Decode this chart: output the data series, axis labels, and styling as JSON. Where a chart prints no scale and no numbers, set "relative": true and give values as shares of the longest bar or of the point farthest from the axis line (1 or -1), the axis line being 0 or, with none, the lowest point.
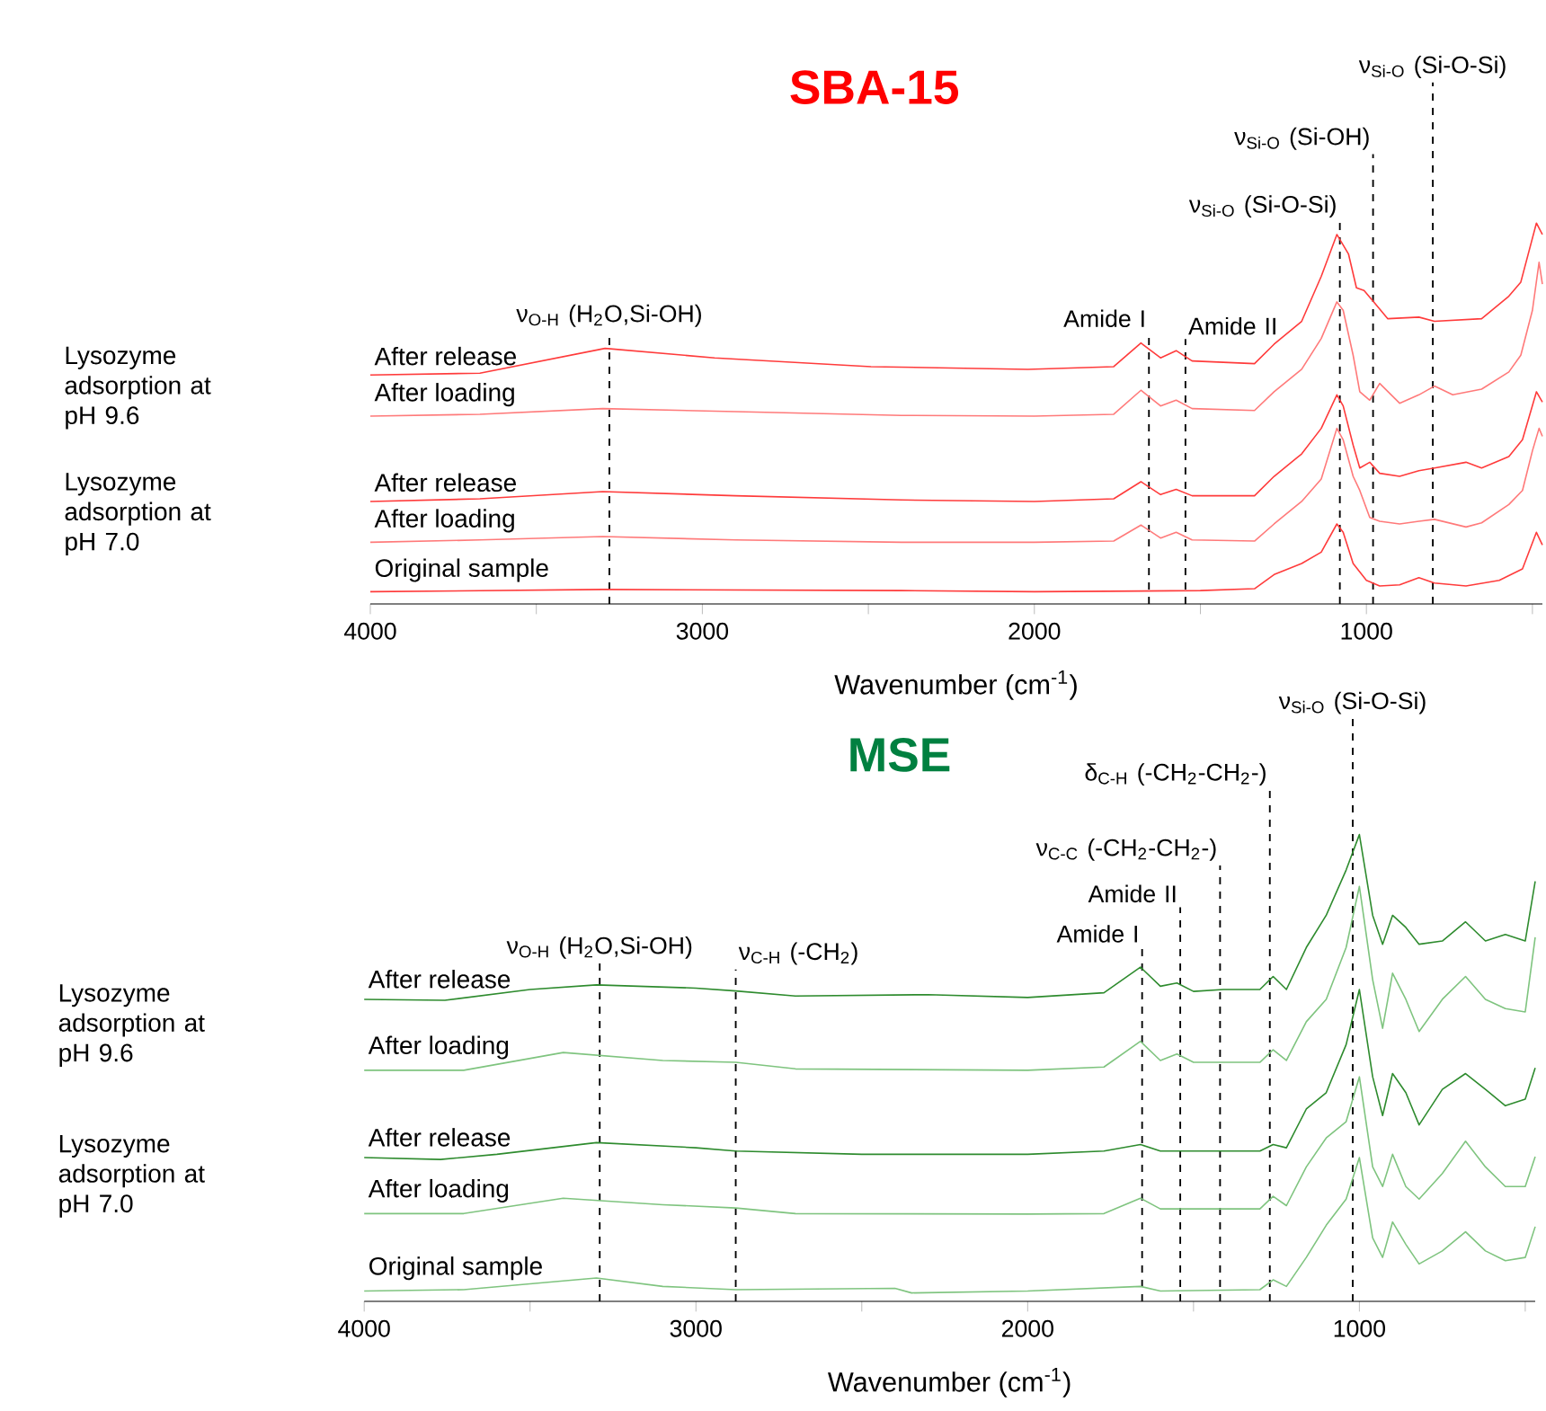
{
  "chart_data": [
    {
      "type": "line",
      "title": "SBA-15",
      "xlabel": "Wavenumber (cm$^{-1}$)",
      "relative": true,
      "xlim": [
        4000,
        470
      ],
      "xticks": [
        4000,
        {
          "value": 3500,
          "label": null
        },
        3000,
        {
          "value": 2500,
          "label": null
        },
        2000,
        {
          "value": 1500,
          "label": null
        },
        1000,
        {
          "value": 500,
          "label": null
        }
      ],
      "series": [
        {
          "name": "After release",
          "color": "#ff3b3b",
          "x": [
            4000,
            3670,
            3293,
            2963,
            2492,
            2020,
            1761,
            1679,
            1620,
            1573,
            1525,
            1337,
            1278,
            1195,
            1136,
            1089,
            1054,
            1030,
            1007,
            936,
            842,
            795,
            653,
            571,
            535,
            488,
            470
          ],
          "values": [
            0.601,
            0.606,
            0.671,
            0.646,
            0.623,
            0.616,
            0.623,
            0.685,
            0.646,
            0.665,
            0.638,
            0.631,
            0.682,
            0.742,
            0.86,
            0.97,
            0.919,
            0.83,
            0.823,
            0.749,
            0.753,
            0.742,
            0.749,
            0.808,
            0.845,
            1.0,
            0.97
          ]
        },
        {
          "name": "After loading",
          "color": "#ff7a7a",
          "x": [
            4000,
            3670,
            3300,
            2900,
            2400,
            2000,
            1761,
            1679,
            1620,
            1573,
            1525,
            1337,
            1278,
            1195,
            1136,
            1089,
            1070,
            1040,
            1020,
            990,
            960,
            900,
            842,
            795,
            740,
            653,
            571,
            535,
            500,
            480,
            470
          ],
          "values": [
            0.493,
            0.498,
            0.513,
            0.505,
            0.495,
            0.493,
            0.498,
            0.561,
            0.52,
            0.535,
            0.513,
            0.508,
            0.557,
            0.616,
            0.697,
            0.793,
            0.771,
            0.653,
            0.557,
            0.535,
            0.579,
            0.527,
            0.549,
            0.572,
            0.549,
            0.564,
            0.609,
            0.653,
            0.771,
            0.897,
            0.84
          ]
        },
        {
          "name": "After release",
          "color": "#ff3b3b",
          "x": [
            4000,
            3670,
            3300,
            2900,
            2400,
            2000,
            1761,
            1679,
            1620,
            1573,
            1525,
            1337,
            1278,
            1195,
            1136,
            1089,
            1070,
            1040,
            1020,
            990,
            960,
            900,
            842,
            795,
            700,
            653,
            571,
            530,
            488,
            470
          ],
          "values": [
            0.269,
            0.276,
            0.295,
            0.284,
            0.273,
            0.269,
            0.276,
            0.321,
            0.287,
            0.301,
            0.284,
            0.284,
            0.335,
            0.394,
            0.461,
            0.549,
            0.52,
            0.417,
            0.357,
            0.372,
            0.343,
            0.335,
            0.35,
            0.357,
            0.372,
            0.357,
            0.387,
            0.431,
            0.557,
            0.53
          ]
        },
        {
          "name": "After loading",
          "color": "#ff7a7a",
          "x": [
            4000,
            3670,
            3300,
            2900,
            2400,
            2000,
            1761,
            1679,
            1620,
            1573,
            1525,
            1337,
            1278,
            1195,
            1136,
            1089,
            1070,
            1040,
            1020,
            990,
            960,
            900,
            842,
            795,
            700,
            653,
            571,
            530,
            500,
            480,
            470
          ],
          "values": [
            0.162,
            0.168,
            0.177,
            0.168,
            0.162,
            0.162,
            0.165,
            0.207,
            0.173,
            0.188,
            0.168,
            0.165,
            0.21,
            0.269,
            0.328,
            0.461,
            0.431,
            0.335,
            0.298,
            0.227,
            0.217,
            0.21,
            0.217,
            0.222,
            0.202,
            0.213,
            0.261,
            0.298,
            0.402,
            0.461,
            0.44
          ]
        },
        {
          "name": "Original sample",
          "color": "#ff3b3b",
          "x": [
            4000,
            3300,
            2400,
            2000,
            1500,
            1337,
            1278,
            1195,
            1136,
            1089,
            1070,
            1040,
            1000,
            960,
            900,
            842,
            795,
            700,
            600,
            530,
            488,
            470
          ],
          "values": [
            0.032,
            0.038,
            0.035,
            0.032,
            0.035,
            0.04,
            0.077,
            0.106,
            0.136,
            0.21,
            0.188,
            0.106,
            0.062,
            0.047,
            0.05,
            0.069,
            0.055,
            0.047,
            0.062,
            0.092,
            0.188,
            0.155
          ]
        }
      ],
      "annotations": [
        "Lysozyme adsorption at pH 9.6",
        "Lysozyme adsorption at pH 7.0"
      ],
      "ref_lines": [
        {
          "axis": "x",
          "value": 3280,
          "line_style": "dashed",
          "label": "ν$_{O-H}$ (H$_{2}$O,Si-OH)"
        },
        {
          "axis": "x",
          "value": 1655,
          "line_style": "dashed",
          "label": "Amide I"
        },
        {
          "axis": "x",
          "value": 1545,
          "line_style": "dashed",
          "label": "Amide II"
        },
        {
          "axis": "x",
          "value": 1080,
          "line_style": "dashed",
          "label": "ν$_{Si-O}$ (Si-O-Si)"
        },
        {
          "axis": "x",
          "value": 980,
          "line_style": "dashed",
          "label": "ν$_{Si-O}$ (Si-OH)"
        },
        {
          "axis": "x",
          "value": 800,
          "line_style": "dashed",
          "label": "ν$_{Si-O}$ (Si-O-Si)"
        }
      ]
    },
    {
      "type": "line",
      "title": "MSE",
      "xlabel": "Wavenumber (cm$^{-1}$)",
      "relative": true,
      "xlim": [
        4000,
        470
      ],
      "xticks": [
        4000,
        {
          "value": 3500,
          "label": null
        },
        3000,
        {
          "value": 2500,
          "label": null
        },
        2000,
        {
          "value": 1500,
          "label": null
        },
        1000,
        {
          "value": 500,
          "label": null
        }
      ],
      "series": [
        {
          "name": "After release",
          "color": "#2e8b2e",
          "x": [
            4000,
            3757,
            3500,
            3300,
            3000,
            2880,
            2700,
            2300,
            2000,
            1770,
            1660,
            1600,
            1550,
            1500,
            1410,
            1300,
            1260,
            1220,
            1160,
            1100,
            1040,
            1000,
            960,
            930,
            900,
            860,
            820,
            750,
            680,
            620,
            560,
            500,
            470
          ],
          "values": [
            0.647,
            0.645,
            0.668,
            0.678,
            0.671,
            0.665,
            0.654,
            0.657,
            0.651,
            0.661,
            0.716,
            0.675,
            0.682,
            0.664,
            0.668,
            0.668,
            0.696,
            0.668,
            0.758,
            0.827,
            0.924,
            1.0,
            0.827,
            0.765,
            0.827,
            0.801,
            0.765,
            0.772,
            0.813,
            0.772,
            0.786,
            0.772,
            0.9
          ]
        },
        {
          "name": "After loading",
          "color": "#7fc47f",
          "x": [
            4000,
            3700,
            3400,
            3100,
            2880,
            2700,
            2000,
            1770,
            1660,
            1600,
            1550,
            1500,
            1300,
            1260,
            1220,
            1160,
            1100,
            1040,
            1000,
            960,
            930,
            900,
            860,
            820,
            750,
            680,
            620,
            560,
            500,
            470
          ],
          "values": [
            0.495,
            0.495,
            0.533,
            0.516,
            0.512,
            0.498,
            0.495,
            0.502,
            0.557,
            0.516,
            0.53,
            0.512,
            0.512,
            0.539,
            0.516,
            0.599,
            0.647,
            0.758,
            0.889,
            0.689,
            0.585,
            0.703,
            0.647,
            0.578,
            0.647,
            0.696,
            0.647,
            0.627,
            0.62,
            0.78
          ]
        },
        {
          "name": "After release",
          "color": "#2e8b2e",
          "x": [
            4000,
            3770,
            3600,
            3300,
            3000,
            2880,
            2500,
            2000,
            1770,
            1660,
            1600,
            1300,
            1260,
            1220,
            1160,
            1100,
            1040,
            1000,
            960,
            930,
            900,
            860,
            820,
            750,
            680,
            620,
            560,
            500,
            470
          ],
          "values": [
            0.308,
            0.304,
            0.315,
            0.34,
            0.329,
            0.322,
            0.315,
            0.315,
            0.322,
            0.336,
            0.322,
            0.322,
            0.336,
            0.329,
            0.412,
            0.447,
            0.55,
            0.668,
            0.481,
            0.398,
            0.488,
            0.447,
            0.378,
            0.454,
            0.488,
            0.454,
            0.419,
            0.433,
            0.5
          ]
        },
        {
          "name": "After loading",
          "color": "#7fc47f",
          "x": [
            4000,
            3700,
            3400,
            3100,
            2880,
            2700,
            2000,
            1770,
            1660,
            1600,
            1300,
            1260,
            1220,
            1160,
            1100,
            1040,
            1000,
            960,
            930,
            900,
            860,
            820,
            750,
            680,
            620,
            560,
            500,
            470
          ],
          "values": [
            0.188,
            0.188,
            0.221,
            0.207,
            0.2,
            0.188,
            0.187,
            0.188,
            0.221,
            0.198,
            0.198,
            0.225,
            0.205,
            0.288,
            0.35,
            0.385,
            0.481,
            0.288,
            0.246,
            0.315,
            0.246,
            0.219,
            0.274,
            0.343,
            0.288,
            0.246,
            0.246,
            0.31
          ]
        },
        {
          "name": "Original sample",
          "color": "#7fc47f",
          "x": [
            4000,
            3700,
            3300,
            3100,
            2880,
            2400,
            2350,
            2000,
            1660,
            1600,
            1300,
            1260,
            1220,
            1160,
            1100,
            1040,
            1000,
            960,
            930,
            900,
            860,
            820,
            750,
            680,
            620,
            560,
            500,
            470
          ],
          "values": [
            0.022,
            0.025,
            0.05,
            0.032,
            0.025,
            0.028,
            0.018,
            0.022,
            0.032,
            0.022,
            0.025,
            0.046,
            0.032,
            0.094,
            0.163,
            0.219,
            0.308,
            0.136,
            0.094,
            0.17,
            0.122,
            0.08,
            0.108,
            0.149,
            0.108,
            0.087,
            0.094,
            0.16
          ]
        }
      ],
      "annotations": [
        "Lysozyme adsorption at pH 9.6",
        "Lysozyme adsorption at pH 7.0"
      ],
      "ref_lines": [
        {
          "axis": "x",
          "value": 3290,
          "line_style": "dashed",
          "label": "ν$_{O-H}$ (H$_{2}$O,Si-OH)"
        },
        {
          "axis": "x",
          "value": 2880,
          "line_style": "dashed",
          "label": "ν$_{C-H}$ (-CH$_{2}$)"
        },
        {
          "axis": "x",
          "value": 1655,
          "line_style": "dashed",
          "label": "Amide I"
        },
        {
          "axis": "x",
          "value": 1540,
          "line_style": "dashed",
          "label": "Amide II"
        },
        {
          "axis": "x",
          "value": 1420,
          "line_style": "dashed",
          "label": "ν$_{C-C}$ (-CH$_{2}$-CH$_{2}$-)"
        },
        {
          "axis": "x",
          "value": 1270,
          "line_style": "dashed",
          "label": "δ$_{C-H}$ (-CH$_{2}$-CH$_{2}$-)"
        },
        {
          "axis": "x",
          "value": 1020,
          "line_style": "dashed",
          "label": "ν$_{Si-O}$ (Si-O-Si)"
        }
      ]
    }
  ]
}
